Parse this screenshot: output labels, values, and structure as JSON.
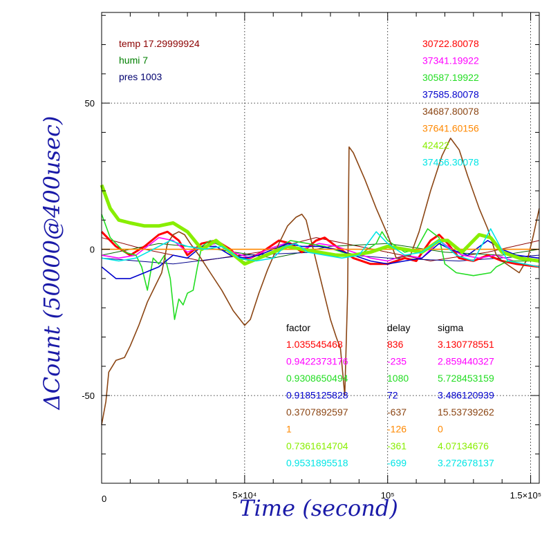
{
  "chart_data": {
    "type": "line",
    "xlabel": "Time (second)",
    "ylabel": "ΔCount (50000@400usec)",
    "xlim": [
      0,
      153000
    ],
    "ylim": [
      -80,
      81
    ],
    "x_ticks": [
      {
        "value": 0,
        "label": "0"
      },
      {
        "value": 50000,
        "label": "5×10⁴"
      },
      {
        "value": 100000,
        "label": "10⁵"
      },
      {
        "value": 150000,
        "label": "1.5×10⁵"
      }
    ],
    "y_ticks": [
      {
        "value": 50,
        "label": "50"
      },
      {
        "value": 0,
        "label": "0"
      },
      {
        "value": -50,
        "label": "-50"
      }
    ],
    "grid": "dotted",
    "environment": [
      {
        "text": "temp 17.29999924",
        "color": "#8b0000"
      },
      {
        "text": "humi 7",
        "color": "#008000"
      },
      {
        "text": "pres 1003",
        "color": "#00006e"
      }
    ],
    "table_headers": {
      "factor": "factor",
      "delay": "delay",
      "sigma": "sigma"
    },
    "series": [
      {
        "mean": "30722.80078",
        "factor": "1.035545468",
        "delay": "836",
        "sigma": "3.130778551",
        "color": "#ff0000",
        "points": [
          [
            0,
            6
          ],
          [
            5000,
            1
          ],
          [
            10000,
            -2
          ],
          [
            15000,
            1
          ],
          [
            20000,
            5
          ],
          [
            23000,
            6
          ],
          [
            27000,
            3
          ],
          [
            30000,
            -2
          ],
          [
            35000,
            2
          ],
          [
            40000,
            3
          ],
          [
            45000,
            0
          ],
          [
            48000,
            -3
          ],
          [
            52000,
            -3
          ],
          [
            56000,
            -1
          ],
          [
            62000,
            3
          ],
          [
            66000,
            2
          ],
          [
            70000,
            -1
          ],
          [
            75000,
            3
          ],
          [
            78000,
            4
          ],
          [
            82000,
            1
          ],
          [
            88000,
            -3
          ],
          [
            94000,
            -5
          ],
          [
            100000,
            -5
          ],
          [
            106000,
            -3
          ],
          [
            110000,
            -4
          ],
          [
            115000,
            3
          ],
          [
            118000,
            5
          ],
          [
            121000,
            2
          ],
          [
            125000,
            -3
          ],
          [
            130000,
            -4
          ],
          [
            135000,
            -2
          ],
          [
            140000,
            -4
          ],
          [
            145000,
            -5
          ],
          [
            153000,
            -6
          ]
        ]
      },
      {
        "mean": "37341.19922",
        "factor": "0.9422373176",
        "delay": "-235",
        "sigma": "2.859440327",
        "color": "#ff00ff",
        "points": [
          [
            0,
            -2
          ],
          [
            6000,
            -3
          ],
          [
            12000,
            -2
          ],
          [
            20000,
            4
          ],
          [
            25000,
            3
          ],
          [
            30000,
            -1
          ],
          [
            35000,
            1
          ],
          [
            40000,
            2
          ],
          [
            46000,
            -1
          ],
          [
            52000,
            -3
          ],
          [
            58000,
            0
          ],
          [
            64000,
            2
          ],
          [
            70000,
            0
          ],
          [
            76000,
            2
          ],
          [
            82000,
            1
          ],
          [
            88000,
            -1
          ],
          [
            94000,
            -3
          ],
          [
            100000,
            -4
          ],
          [
            106000,
            -2
          ],
          [
            112000,
            -3
          ],
          [
            118000,
            3
          ],
          [
            121000,
            1
          ],
          [
            126000,
            -2
          ],
          [
            132000,
            -3
          ],
          [
            138000,
            -2
          ],
          [
            144000,
            -4
          ],
          [
            153000,
            -4
          ]
        ]
      },
      {
        "mean": "30587.19922",
        "factor": "0.9308650494",
        "delay": "1080",
        "sigma": "5.728453159",
        "color": "#22dd22",
        "points": [
          [
            0,
            12
          ],
          [
            3000,
            4
          ],
          [
            8000,
            -1
          ],
          [
            12000,
            -2
          ],
          [
            14000,
            -6
          ],
          [
            16000,
            -14
          ],
          [
            18000,
            -3
          ],
          [
            20000,
            -5
          ],
          [
            22000,
            -2
          ],
          [
            24000,
            -10
          ],
          [
            25500,
            -24
          ],
          [
            27000,
            -17
          ],
          [
            28500,
            -19
          ],
          [
            30000,
            -15
          ],
          [
            32000,
            -14
          ],
          [
            33500,
            -6
          ],
          [
            35000,
            1
          ],
          [
            38000,
            3
          ],
          [
            42000,
            1
          ],
          [
            47000,
            -3
          ],
          [
            53000,
            -4
          ],
          [
            60000,
            -1
          ],
          [
            66000,
            3
          ],
          [
            72000,
            2
          ],
          [
            78000,
            1
          ],
          [
            84000,
            -1
          ],
          [
            90000,
            -2
          ],
          [
            96000,
            2
          ],
          [
            98000,
            6
          ],
          [
            100000,
            3
          ],
          [
            106000,
            -1
          ],
          [
            110000,
            0
          ],
          [
            114000,
            7
          ],
          [
            118000,
            4
          ],
          [
            120000,
            -5
          ],
          [
            124000,
            -8
          ],
          [
            130000,
            -9
          ],
          [
            136000,
            -8
          ],
          [
            138000,
            -6
          ],
          [
            142000,
            -4
          ],
          [
            148000,
            -4
          ],
          [
            153000,
            -4
          ]
        ]
      },
      {
        "mean": "37585.80078",
        "factor": "0.9185125828",
        "delay": "72",
        "sigma": "3.486120939",
        "color": "#0000cc",
        "points": [
          [
            0,
            -6
          ],
          [
            5000,
            -10
          ],
          [
            10000,
            -10
          ],
          [
            15000,
            -8
          ],
          [
            20000,
            -6
          ],
          [
            25000,
            -2
          ],
          [
            30000,
            -3
          ],
          [
            35000,
            1
          ],
          [
            40000,
            1
          ],
          [
            45000,
            -2
          ],
          [
            50000,
            -3
          ],
          [
            55000,
            -2
          ],
          [
            60000,
            0
          ],
          [
            65000,
            2
          ],
          [
            70000,
            1
          ],
          [
            76000,
            1
          ],
          [
            82000,
            0
          ],
          [
            88000,
            -2
          ],
          [
            94000,
            -4
          ],
          [
            100000,
            -5
          ],
          [
            106000,
            -4
          ],
          [
            112000,
            -3
          ],
          [
            118000,
            2
          ],
          [
            122000,
            0
          ],
          [
            128000,
            -2
          ],
          [
            135000,
            3
          ],
          [
            140000,
            0
          ],
          [
            145000,
            -2
          ],
          [
            153000,
            -3
          ]
        ]
      },
      {
        "mean": "34687.80078",
        "factor": "0.3707892597",
        "delay": "-637",
        "sigma": "15.53739262",
        "color": "#8b4513",
        "points": [
          [
            0,
            -60
          ],
          [
            1500,
            -52
          ],
          [
            2500,
            -42
          ],
          [
            5000,
            -38
          ],
          [
            8000,
            -37
          ],
          [
            10000,
            -33
          ],
          [
            13000,
            -26
          ],
          [
            16000,
            -18
          ],
          [
            19000,
            -12
          ],
          [
            21000,
            -8
          ],
          [
            23000,
            2
          ],
          [
            25000,
            5
          ],
          [
            27000,
            6
          ],
          [
            29000,
            5
          ],
          [
            31000,
            2
          ],
          [
            34000,
            -2
          ],
          [
            38000,
            -8
          ],
          [
            42000,
            -14
          ],
          [
            46000,
            -21
          ],
          [
            50000,
            -26
          ],
          [
            52000,
            -24
          ],
          [
            55000,
            -15
          ],
          [
            58000,
            -7
          ],
          [
            62000,
            2
          ],
          [
            65000,
            8
          ],
          [
            68000,
            11
          ],
          [
            70000,
            12
          ],
          [
            71500,
            10
          ],
          [
            73000,
            4
          ],
          [
            76000,
            -8
          ],
          [
            78000,
            -16
          ],
          [
            80000,
            -24
          ],
          [
            82000,
            -30
          ],
          [
            83500,
            -34
          ],
          [
            85000,
            -50
          ],
          [
            86000,
            -15
          ],
          [
            86500,
            35
          ],
          [
            88000,
            33
          ],
          [
            92000,
            24
          ],
          [
            96000,
            14
          ],
          [
            100000,
            5
          ],
          [
            103000,
            -3
          ],
          [
            108000,
            -2
          ],
          [
            111000,
            6
          ],
          [
            115000,
            20
          ],
          [
            119000,
            32
          ],
          [
            122000,
            38
          ],
          [
            125000,
            34
          ],
          [
            128000,
            25
          ],
          [
            132000,
            14
          ],
          [
            135000,
            7
          ],
          [
            138000,
            -2
          ],
          [
            140000,
            -4
          ],
          [
            143000,
            -6
          ],
          [
            146000,
            -8
          ],
          [
            149000,
            -3
          ],
          [
            151000,
            5
          ],
          [
            153000,
            14
          ]
        ]
      },
      {
        "mean": "37641.60156",
        "factor": "1",
        "delay": "-126",
        "sigma": "0",
        "color": "#ff8800",
        "points": [
          [
            0,
            0
          ],
          [
            153000,
            0
          ]
        ]
      },
      {
        "mean": "42422",
        "factor": "0.7361614704",
        "delay": "-361",
        "sigma": "4.07134676",
        "color": "#88ee00",
        "points": [
          [
            0,
            22
          ],
          [
            3000,
            14
          ],
          [
            6000,
            10
          ],
          [
            10000,
            9
          ],
          [
            15000,
            8
          ],
          [
            20000,
            8
          ],
          [
            25000,
            9
          ],
          [
            30000,
            6
          ],
          [
            35000,
            0
          ],
          [
            40000,
            3
          ],
          [
            45000,
            -1
          ],
          [
            50000,
            -5
          ],
          [
            55000,
            -3
          ],
          [
            60000,
            -1
          ],
          [
            65000,
            1
          ],
          [
            70000,
            0
          ],
          [
            76000,
            -1
          ],
          [
            82000,
            -2
          ],
          [
            88000,
            -2
          ],
          [
            94000,
            -1
          ],
          [
            100000,
            1
          ],
          [
            106000,
            0
          ],
          [
            112000,
            -1
          ],
          [
            118000,
            3
          ],
          [
            121000,
            3
          ],
          [
            126000,
            -1
          ],
          [
            132000,
            5
          ],
          [
            136000,
            4
          ],
          [
            140000,
            -1
          ],
          [
            146000,
            -3
          ],
          [
            153000,
            -4
          ]
        ]
      },
      {
        "mean": "37456.30078",
        "factor": "0.9531895518",
        "delay": "-699",
        "sigma": "3.272678137",
        "color": "#00e5e5",
        "points": [
          [
            0,
            -3
          ],
          [
            6000,
            -4
          ],
          [
            12000,
            -3
          ],
          [
            18000,
            0
          ],
          [
            24000,
            3
          ],
          [
            30000,
            1
          ],
          [
            36000,
            0
          ],
          [
            42000,
            1
          ],
          [
            48000,
            -3
          ],
          [
            54000,
            -4
          ],
          [
            60000,
            -3
          ],
          [
            64000,
            1
          ],
          [
            68000,
            2
          ],
          [
            72000,
            -1
          ],
          [
            78000,
            -2
          ],
          [
            84000,
            -3
          ],
          [
            90000,
            -2
          ],
          [
            96000,
            6
          ],
          [
            100000,
            2
          ],
          [
            106000,
            -2
          ],
          [
            112000,
            -1
          ],
          [
            118000,
            3
          ],
          [
            124000,
            -2
          ],
          [
            130000,
            -4
          ],
          [
            136000,
            7
          ],
          [
            142000,
            -4
          ],
          [
            148000,
            -5
          ],
          [
            153000,
            -6
          ]
        ]
      }
    ],
    "baselines": [
      {
        "color": "#8b0000",
        "points": [
          [
            0,
            4
          ],
          [
            15000,
            0
          ],
          [
            35000,
            -4
          ],
          [
            55000,
            -1
          ],
          [
            75000,
            4
          ],
          [
            95000,
            0
          ],
          [
            115000,
            -4
          ],
          [
            135000,
            -1
          ],
          [
            153000,
            3
          ]
        ]
      },
      {
        "color": "#006400",
        "points": [
          [
            0,
            -2
          ],
          [
            20000,
            2
          ],
          [
            40000,
            0
          ],
          [
            60000,
            -3
          ],
          [
            80000,
            1
          ],
          [
            100000,
            2
          ],
          [
            120000,
            -1
          ],
          [
            140000,
            -2
          ],
          [
            153000,
            0
          ]
        ]
      },
      {
        "color": "#00008b",
        "points": [
          [
            0,
            -3
          ],
          [
            25000,
            -5
          ],
          [
            50000,
            -2
          ],
          [
            75000,
            -1
          ],
          [
            100000,
            -3
          ],
          [
            125000,
            -4
          ],
          [
            153000,
            -2
          ]
        ]
      },
      {
        "color": "#aa8800",
        "points": [
          [
            0,
            0
          ],
          [
            153000,
            0
          ]
        ]
      }
    ]
  }
}
